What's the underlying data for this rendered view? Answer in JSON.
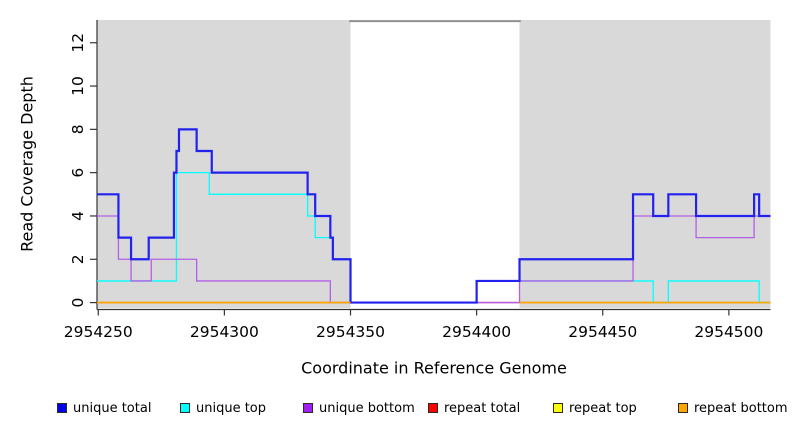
{
  "figure": {
    "ylabel": "Read Coverage Depth",
    "xlabel": "Coordinate in Reference Genome"
  },
  "legend": {
    "items": [
      {
        "label": "unique total",
        "color": "#0000EE"
      },
      {
        "label": "unique top",
        "color": "#00FFFF"
      },
      {
        "label": "unique bottom",
        "color": "#A020F0"
      },
      {
        "label": "repeat total",
        "color": "#FF0000"
      },
      {
        "label": "repeat top",
        "color": "#FFFF00"
      },
      {
        "label": "repeat bottom",
        "color": "#FFA500"
      }
    ]
  },
  "chart_data": {
    "type": "line",
    "subtype": "step-coverage",
    "title": "",
    "xlabel": "Coordinate in Reference Genome",
    "ylabel": "Read Coverage Depth",
    "xlim": [
      2954249.5,
      2954516.5
    ],
    "ylim": [
      -0.25,
      13.05
    ],
    "grid": false,
    "legend_position": "bottom",
    "xticks": [
      {
        "value": 2954250,
        "label": "2954250"
      },
      {
        "value": 2954300,
        "label": "2954300"
      },
      {
        "value": 2954350,
        "label": "2954350"
      },
      {
        "value": 2954400,
        "label": "2954400"
      },
      {
        "value": 2954450,
        "label": "2954450"
      },
      {
        "value": 2954500,
        "label": "2954500"
      }
    ],
    "yticks": [
      {
        "value": 0,
        "label": "0"
      },
      {
        "value": 2,
        "label": "2"
      },
      {
        "value": 4,
        "label": "4"
      },
      {
        "value": 6,
        "label": "6"
      },
      {
        "value": 8,
        "label": "8"
      },
      {
        "value": 10,
        "label": "10"
      },
      {
        "value": 12,
        "label": "12"
      }
    ],
    "shade_color": "#d9d9d9",
    "shaded_regions": [
      [
        2954249.5,
        2954350
      ],
      [
        2954417,
        2954516.5
      ]
    ],
    "gap_top_line": {
      "y": 13,
      "from": 2954349.5,
      "to": 2954417.5,
      "color": "#909090"
    },
    "draw_order": [
      "repeat top",
      "repeat total",
      "unique top",
      "unique bottom",
      "unique total",
      "repeat bottom"
    ],
    "series": [
      {
        "name": "unique total",
        "color": "#2222EE",
        "width": 2.2,
        "segments": [
          {
            "steps": [
              [
                2954249.5,
                5
              ],
              [
                2954258,
                3
              ],
              [
                2954263,
                2
              ],
              [
                2954270,
                3
              ],
              [
                2954280,
                6
              ],
              [
                2954281,
                7
              ],
              [
                2954282,
                8
              ],
              [
                2954289,
                7
              ],
              [
                2954295,
                6
              ],
              [
                2954333,
                5
              ],
              [
                2954336,
                4
              ],
              [
                2954342,
                3
              ],
              [
                2954343,
                2
              ],
              [
                2954350,
                0
              ],
              [
                2954400,
                1
              ],
              [
                2954417,
                2
              ],
              [
                2954462,
                5
              ],
              [
                2954470,
                4
              ],
              [
                2954476,
                5
              ],
              [
                2954487,
                4
              ],
              [
                2954510,
                5
              ],
              [
                2954512,
                4
              ]
            ],
            "end": 2954516.5
          }
        ]
      },
      {
        "name": "unique top",
        "color": "#00FFFF",
        "width": 1.3,
        "segments": [
          {
            "steps": [
              [
                2954249.5,
                1
              ],
              [
                2954281,
                6
              ],
              [
                2954294,
                5
              ],
              [
                2954333,
                4
              ],
              [
                2954336,
                3
              ],
              [
                2954343,
                2
              ],
              [
                2954350,
                0
              ],
              [
                2954400,
                1
              ],
              [
                2954470,
                0
              ],
              [
                2954476,
                1
              ],
              [
                2954512,
                0
              ]
            ],
            "end": 2954516.5
          }
        ]
      },
      {
        "name": "unique bottom",
        "color": "#B45FE8",
        "width": 1.3,
        "segments": [
          {
            "steps": [
              [
                2954249.5,
                4
              ],
              [
                2954258,
                2
              ],
              [
                2954263,
                1
              ],
              [
                2954271,
                2
              ],
              [
                2954289,
                1
              ],
              [
                2954342,
                0
              ],
              [
                2954417,
                1
              ],
              [
                2954462,
                4
              ],
              [
                2954487,
                3
              ],
              [
                2954510,
                4
              ]
            ],
            "end": 2954516.5
          }
        ]
      },
      {
        "name": "repeat total",
        "color": "#E0395A",
        "width": 1.3,
        "segments": [
          {
            "steps": [
              [
                2954249.5,
                0
              ]
            ],
            "end": 2954350
          },
          {
            "steps": [
              [
                2954400,
                0
              ]
            ],
            "end": 2954516.5
          }
        ]
      },
      {
        "name": "repeat top",
        "color": "#FFFF00",
        "width": 1.3,
        "segments": [
          {
            "steps": [
              [
                2954249.5,
                0
              ]
            ],
            "end": 2954350
          },
          {
            "steps": [
              [
                2954417,
                0
              ]
            ],
            "end": 2954516.5
          }
        ]
      },
      {
        "name": "repeat bottom",
        "color": "#FFA500",
        "width": 1.6,
        "segments": [
          {
            "steps": [
              [
                2954249.5,
                0
              ]
            ],
            "end": 2954350
          },
          {
            "steps": [
              [
                2954417,
                0
              ]
            ],
            "end": 2954516.5
          }
        ]
      }
    ]
  }
}
